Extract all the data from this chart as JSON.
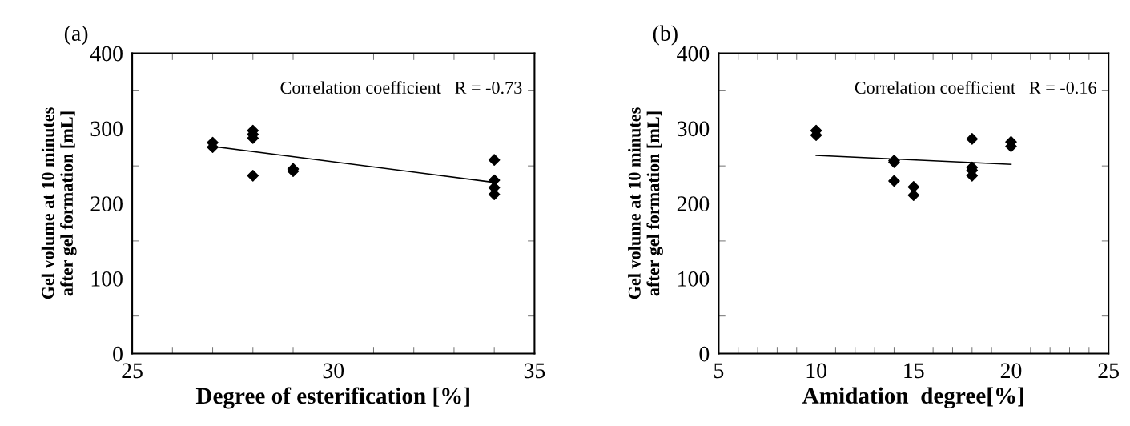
{
  "chart_data": [
    {
      "type": "scatter",
      "title": "(a)",
      "xlabel": "Degree of esterification [%]",
      "ylabel": "Gel volume at 10 minutes\nafter gel formation [mL]",
      "xlim": [
        25,
        35
      ],
      "xticks": [
        25,
        30,
        35
      ],
      "ylim": [
        0,
        400
      ],
      "yticks": [
        0,
        100,
        200,
        300,
        400
      ],
      "grid": false,
      "annotations": [
        "Correlation coefficient   R = -0.73"
      ],
      "series": [
        {
          "color": "#000000",
          "marker": "diamond",
          "x": [
            27,
            27,
            28,
            28,
            28,
            28,
            29,
            29,
            34,
            34,
            34,
            34
          ],
          "values": [
            281,
            275,
            297,
            292,
            287,
            237,
            246,
            243,
            258,
            231,
            221,
            212
          ]
        },
        {
          "type": "line",
          "marker": "none",
          "color": "#000000",
          "x": [
            27,
            34
          ],
          "values": [
            276,
            228
          ]
        }
      ]
    },
    {
      "type": "scatter",
      "title": "(b)",
      "xlabel": "Amidation  degree[%]",
      "ylabel": "Gel volume at 10 minutes\nafter gel formation [mL]",
      "xlim": [
        5,
        25
      ],
      "xticks": [
        5,
        10,
        15,
        20,
        25
      ],
      "ylim": [
        0,
        400
      ],
      "yticks": [
        0,
        100,
        200,
        300,
        400
      ],
      "grid": false,
      "annotations": [
        "Correlation coefficient   R = -0.16"
      ],
      "series": [
        {
          "color": "#000000",
          "marker": "diamond",
          "x": [
            10,
            10,
            14,
            14,
            14,
            15,
            15,
            18,
            18,
            18,
            18,
            20,
            20
          ],
          "values": [
            297,
            291,
            257,
            255,
            230,
            222,
            211,
            286,
            248,
            244,
            237,
            282,
            276
          ]
        },
        {
          "type": "line",
          "marker": "none",
          "color": "#000000",
          "x": [
            10,
            20
          ],
          "values": [
            264,
            252
          ]
        }
      ]
    }
  ]
}
